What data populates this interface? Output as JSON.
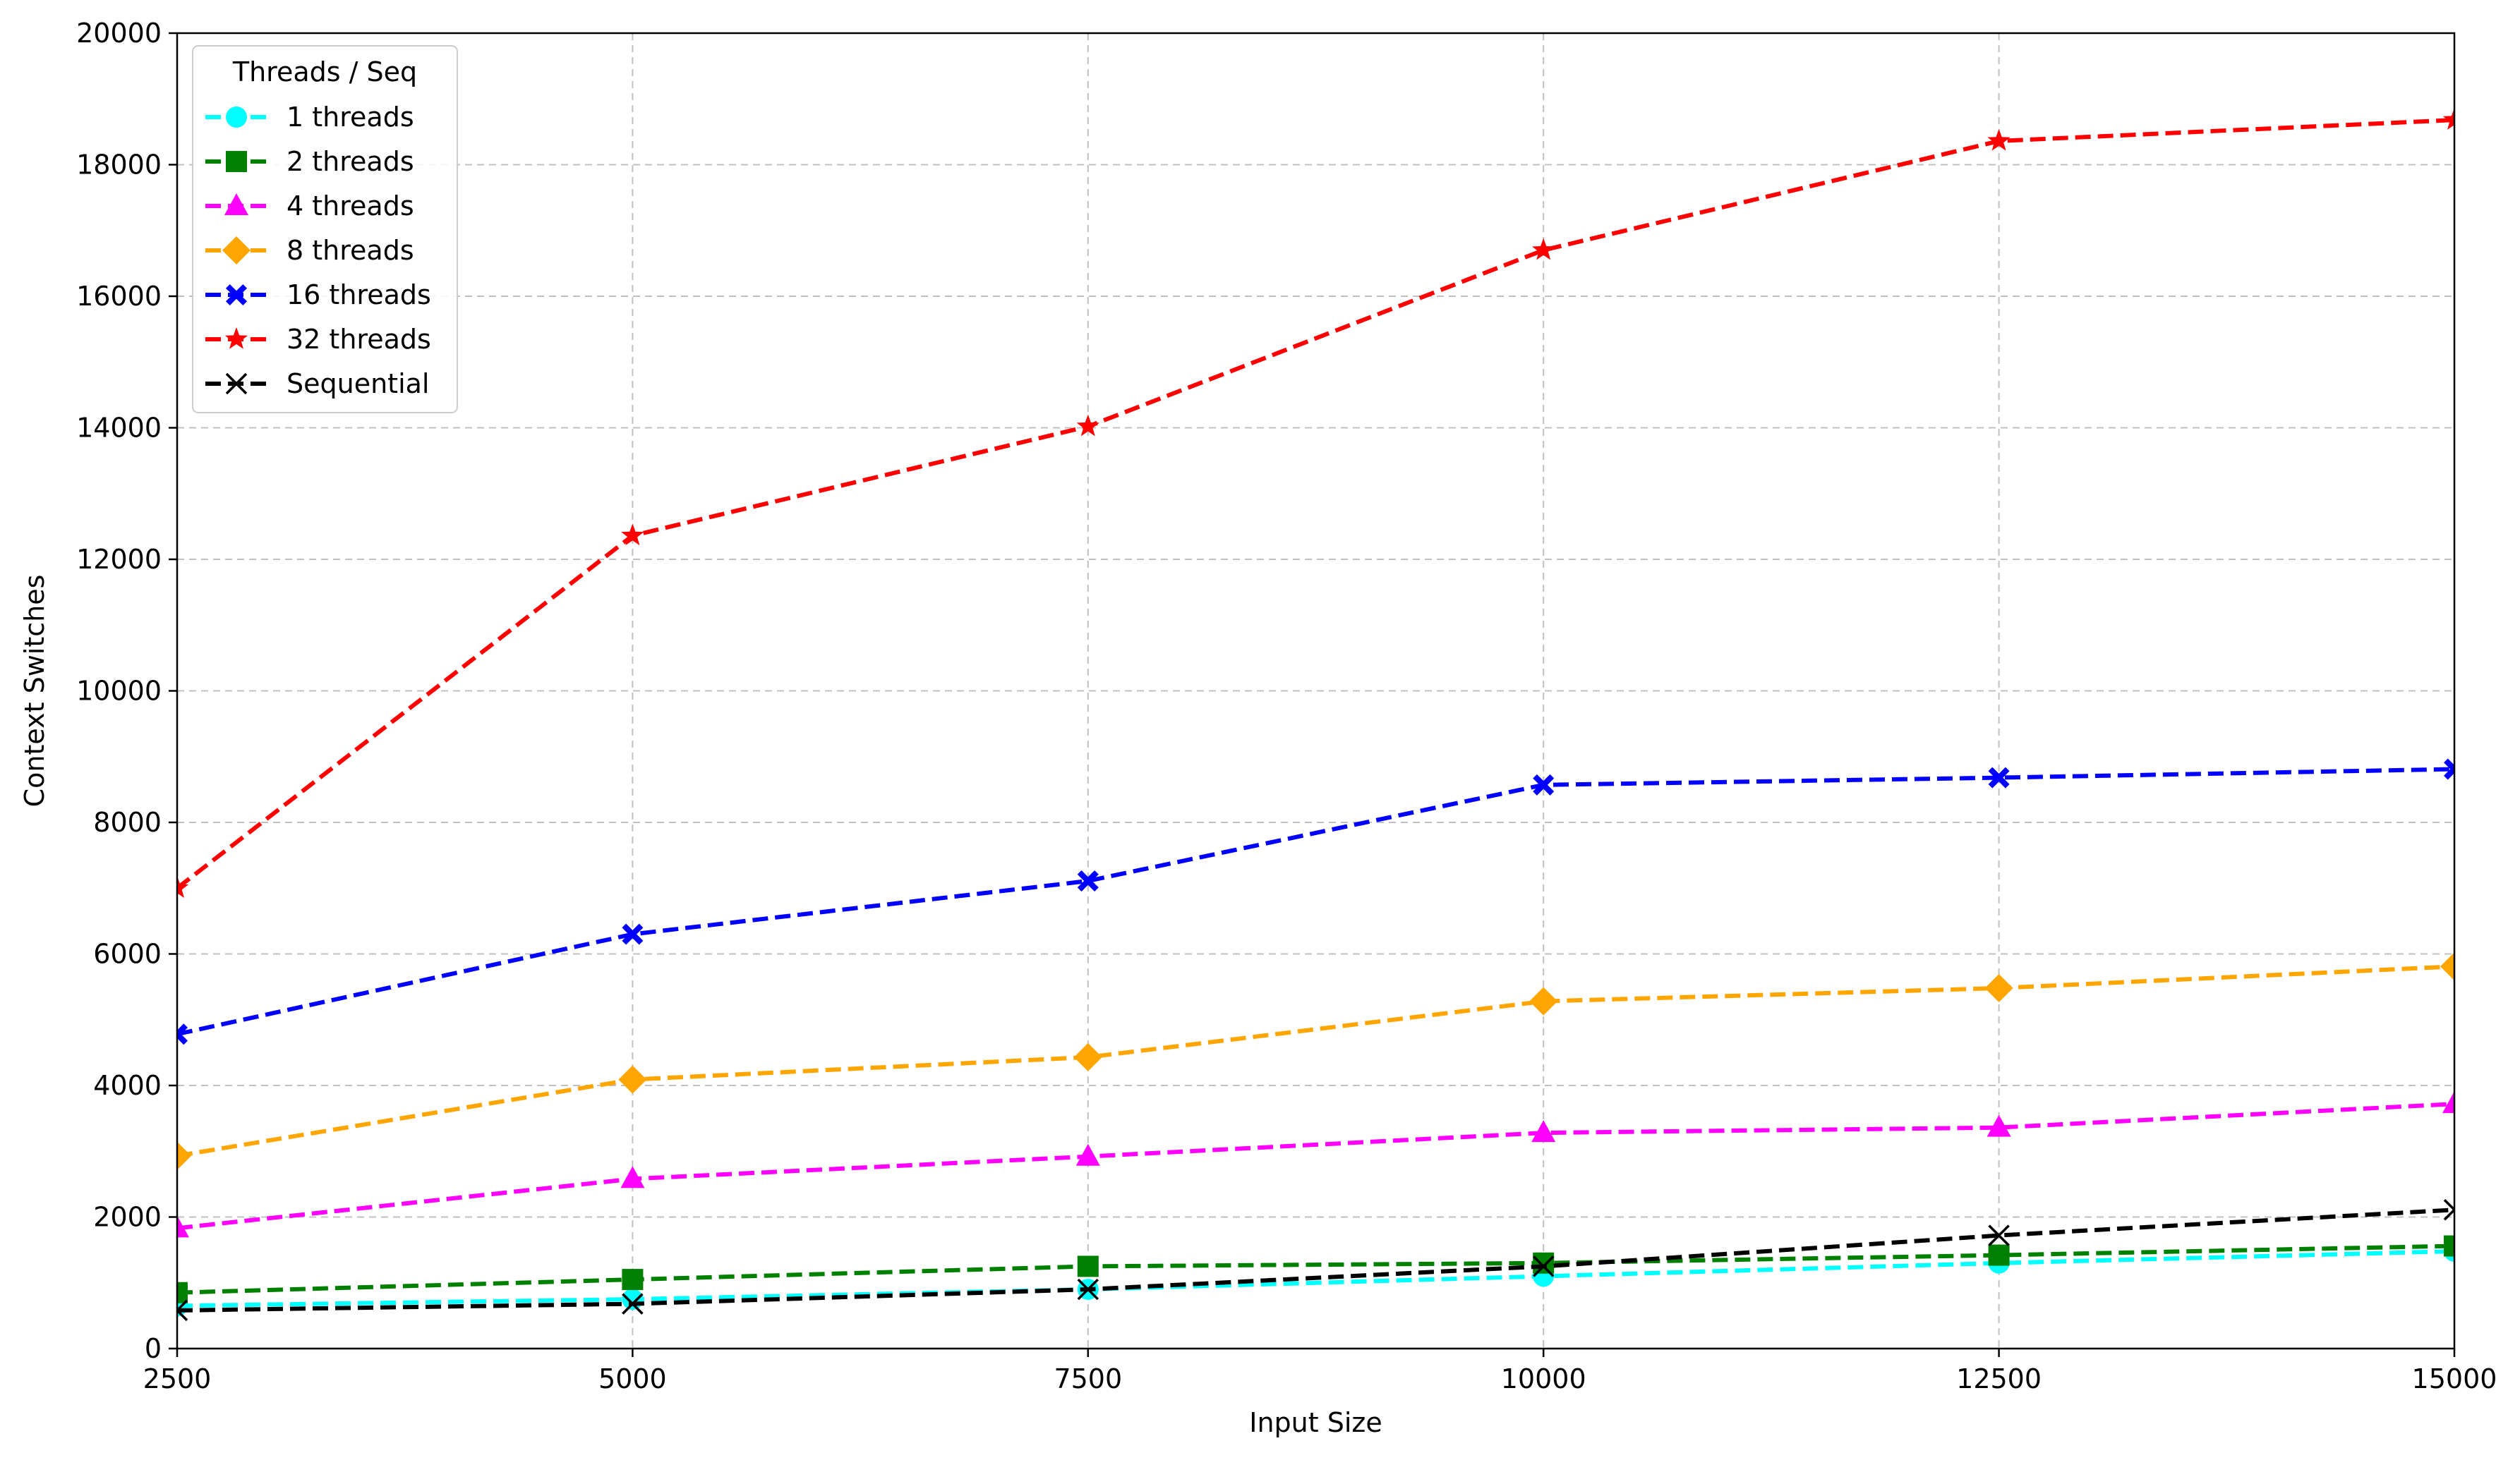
{
  "chart_data": {
    "type": "line",
    "title": "",
    "xlabel": "Input Size",
    "ylabel": "Context Switches",
    "x": [
      2500,
      5000,
      7500,
      10000,
      12500,
      15000
    ],
    "xlim": [
      2500,
      15000
    ],
    "ylim": [
      0,
      20000
    ],
    "xticks": [
      2500,
      5000,
      7500,
      10000,
      12500,
      15000
    ],
    "yticks": [
      0,
      2000,
      4000,
      6000,
      8000,
      10000,
      12000,
      14000,
      16000,
      18000,
      20000
    ],
    "grid": true,
    "legend": {
      "title": "Threads / Seq",
      "placement": "top-left"
    },
    "series": [
      {
        "name": "1 threads",
        "color": "#00ffff",
        "marker": "circle",
        "values": [
          650,
          750,
          900,
          1100,
          1300,
          1480
        ]
      },
      {
        "name": "2 threads",
        "color": "#008000",
        "marker": "square",
        "values": [
          850,
          1050,
          1250,
          1300,
          1420,
          1560
        ]
      },
      {
        "name": "4 threads",
        "color": "#ff00ff",
        "marker": "triangle",
        "values": [
          1830,
          2580,
          2920,
          3280,
          3360,
          3720
        ]
      },
      {
        "name": "8 threads",
        "color": "#ffa500",
        "marker": "diamond",
        "values": [
          2930,
          4090,
          4430,
          5280,
          5480,
          5810
        ]
      },
      {
        "name": "16 threads",
        "color": "#0000ff",
        "marker": "x-filled",
        "values": [
          4780,
          6300,
          7110,
          8570,
          8680,
          8810
        ]
      },
      {
        "name": "32 threads",
        "color": "#ff0000",
        "marker": "star",
        "values": [
          7000,
          12360,
          14020,
          16700,
          18360,
          18680
        ]
      },
      {
        "name": "Sequential",
        "color": "#000000",
        "marker": "x",
        "values": [
          580,
          680,
          900,
          1250,
          1720,
          2110
        ]
      }
    ]
  }
}
